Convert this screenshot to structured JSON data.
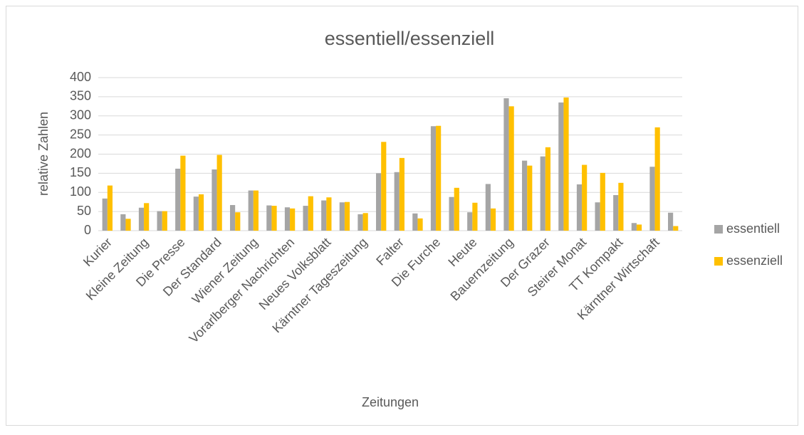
{
  "chart_data": {
    "type": "bar",
    "title": "essentiell/essenziell",
    "x_label": "Zeitungen",
    "y_label": "relative Zahlen",
    "categories": [
      "Kurier",
      null,
      "Kleine Zeitung",
      null,
      "Die Presse",
      null,
      "Der Standard",
      null,
      "Wiener Zeitung",
      null,
      "Vorarlberger Nachrichten",
      null,
      "Neues Volksblatt",
      null,
      "Kärntner Tageszeitung",
      null,
      "Falter",
      null,
      "Die Furche",
      null,
      "Heute",
      null,
      "Bauernzeitung",
      null,
      "Der Grazer",
      null,
      "Steirer Monat",
      null,
      "TT Kompakt",
      null,
      "Kärntner Wirtschaft",
      null
    ],
    "series": [
      {
        "name": "essentiell",
        "color": "#a5a5a5",
        "values": [
          84,
          43,
          60,
          51,
          162,
          89,
          160,
          67,
          105,
          66,
          61,
          65,
          79,
          74,
          43,
          150,
          153,
          45,
          273,
          88,
          48,
          122,
          346,
          183,
          194,
          335,
          121,
          74,
          93,
          20,
          167,
          47
        ]
      },
      {
        "name": "essenziell",
        "color": "#ffc000",
        "values": [
          118,
          31,
          72,
          51,
          196,
          95,
          198,
          48,
          105,
          65,
          58,
          90,
          87,
          75,
          46,
          232,
          190,
          32,
          274,
          112,
          73,
          58,
          325,
          170,
          218,
          348,
          172,
          151,
          125,
          16,
          270,
          12
        ]
      }
    ],
    "ylim": [
      0,
      400
    ],
    "yticks": [
      0,
      50,
      100,
      150,
      200,
      250,
      300,
      350,
      400
    ],
    "grid": true,
    "legend": "right"
  }
}
